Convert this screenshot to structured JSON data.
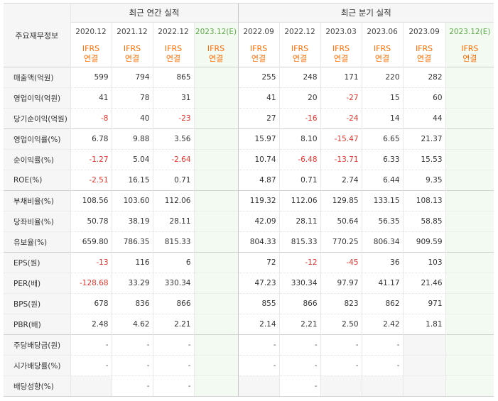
{
  "header": {
    "label": "주요재무정보",
    "annual_title": "최근 연간 실적",
    "quarter_title": "최근 분기 실적",
    "periods": [
      "2020.12",
      "2021.12",
      "2022.12",
      "2023.12(E)",
      "2022.09",
      "2022.12",
      "2023.03",
      "2023.06",
      "2023.09",
      "2023.12(E)"
    ],
    "ifrs_line1": "IFRS",
    "ifrs_line2": "연결"
  },
  "rows": [
    {
      "label": "매출액(억원)",
      "values": [
        "599",
        "794",
        "865",
        "",
        "255",
        "248",
        "171",
        "220",
        "282",
        ""
      ]
    },
    {
      "label": "영업이익(억원)",
      "values": [
        "41",
        "78",
        "31",
        "",
        "41",
        "20",
        "-27",
        "15",
        "60",
        ""
      ]
    },
    {
      "label": "당기순이익(억원)",
      "values": [
        "-8",
        "40",
        "-23",
        "",
        "27",
        "-16",
        "-24",
        "14",
        "44",
        ""
      ]
    },
    {
      "label": "영업이익률(%)",
      "values": [
        "6.78",
        "9.88",
        "3.56",
        "",
        "15.97",
        "8.10",
        "-15.47",
        "6.65",
        "21.37",
        ""
      ]
    },
    {
      "label": "순이익률(%)",
      "values": [
        "-1.27",
        "5.04",
        "-2.64",
        "",
        "10.74",
        "-6.48",
        "-13.71",
        "6.33",
        "15.53",
        ""
      ]
    },
    {
      "label": "ROE(%)",
      "values": [
        "-2.51",
        "16.15",
        "0.71",
        "",
        "4.87",
        "0.71",
        "2.74",
        "6.44",
        "9.35",
        ""
      ]
    },
    {
      "label": "부채비율(%)",
      "values": [
        "108.56",
        "103.60",
        "112.06",
        "",
        "119.32",
        "112.06",
        "129.85",
        "133.15",
        "108.13",
        ""
      ]
    },
    {
      "label": "당좌비율(%)",
      "values": [
        "50.78",
        "38.19",
        "28.11",
        "",
        "42.09",
        "28.11",
        "50.64",
        "56.35",
        "58.85",
        ""
      ]
    },
    {
      "label": "유보율(%)",
      "values": [
        "659.80",
        "786.35",
        "815.33",
        "",
        "804.33",
        "815.33",
        "770.25",
        "806.34",
        "909.59",
        ""
      ]
    },
    {
      "label": "EPS(원)",
      "values": [
        "-13",
        "116",
        "6",
        "",
        "72",
        "-12",
        "-45",
        "36",
        "103",
        ""
      ]
    },
    {
      "label": "PER(배)",
      "values": [
        "-128.68",
        "33.29",
        "330.34",
        "",
        "47.23",
        "330.34",
        "97.97",
        "41.17",
        "21.46",
        ""
      ]
    },
    {
      "label": "BPS(원)",
      "values": [
        "678",
        "836",
        "866",
        "",
        "855",
        "866",
        "823",
        "862",
        "971",
        ""
      ]
    },
    {
      "label": "PBR(배)",
      "values": [
        "2.48",
        "4.62",
        "2.21",
        "",
        "2.14",
        "2.21",
        "2.50",
        "2.42",
        "1.81",
        ""
      ]
    },
    {
      "label": "주당배당금(원)",
      "values": [
        "-",
        "-",
        "-",
        "",
        "-",
        "-",
        "-",
        "-",
        "",
        ""
      ]
    },
    {
      "label": "시가배당률(%)",
      "values": [
        "-",
        "-",
        "-",
        "",
        "-",
        "-",
        "-",
        "-",
        "",
        ""
      ]
    },
    {
      "label": "배당성향(%)",
      "values": [
        "",
        "-",
        "-",
        "",
        "",
        "-",
        "",
        "",
        "",
        ""
      ]
    }
  ],
  "colors": {
    "negative": "#e5342b",
    "ifrs": "#ff6c00",
    "estimate_text": "#5fa84a",
    "estimate_bg": "#f3faf2"
  }
}
